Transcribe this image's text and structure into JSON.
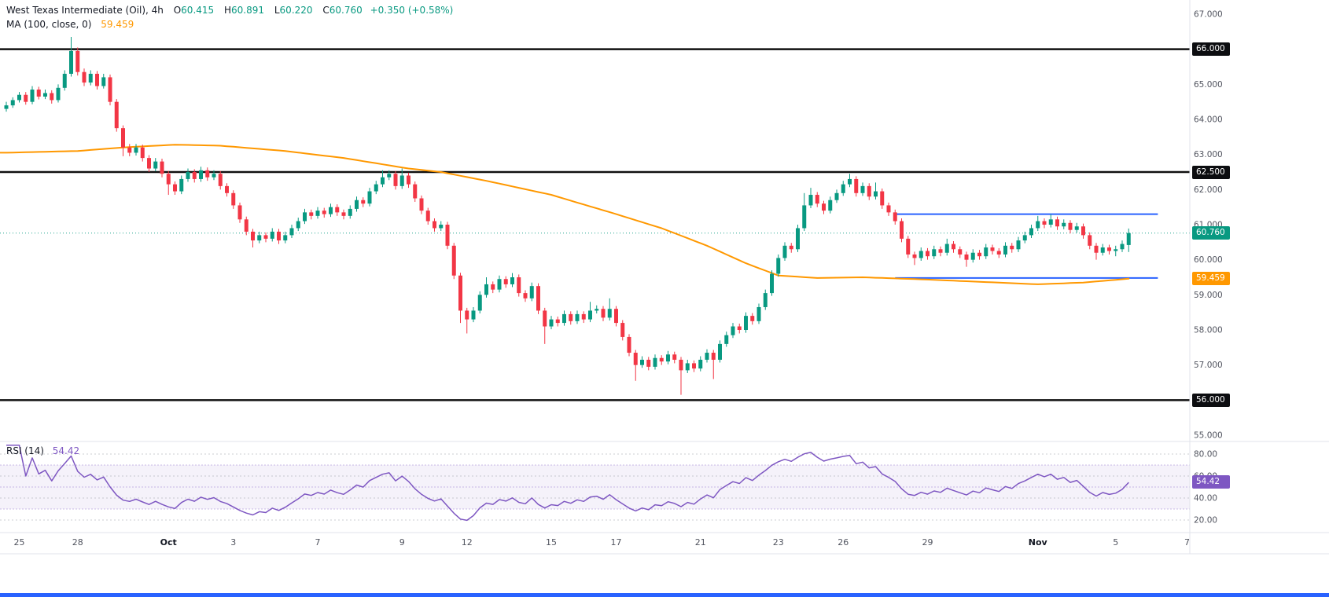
{
  "header": {
    "symbol_line": {
      "title": "West Texas Intermediate (Oil), 4h",
      "o_label": "O",
      "o": "60.415",
      "h_label": "H",
      "h": "60.891",
      "l_label": "L",
      "l": "60.220",
      "c_label": "C",
      "c": "60.760",
      "change": "+0.350 (+0.58%)"
    },
    "ma_line": {
      "label": "MA (100, close, 0)",
      "value": "59.459"
    }
  },
  "rsi_header": {
    "label": "RSI (14)",
    "value": "54.42"
  },
  "price_axis": {
    "ticks": [
      "67.000",
      "65.000",
      "64.000",
      "63.000",
      "62.000",
      "61.000",
      "60.000",
      "59.000",
      "58.000",
      "57.000",
      "55.000"
    ],
    "tick_prices": [
      67,
      65,
      64,
      63,
      62,
      61,
      60,
      59,
      58,
      57,
      55
    ],
    "badges": [
      {
        "label": "66.000",
        "price": 66.0,
        "type": "level"
      },
      {
        "label": "62.500",
        "price": 62.5,
        "type": "level"
      },
      {
        "label": "56.000",
        "price": 56.0,
        "type": "level"
      },
      {
        "label": "60.760",
        "price": 60.76,
        "type": "last"
      },
      {
        "label": "59.459",
        "price": 59.459,
        "type": "ma"
      }
    ]
  },
  "rsi_axis": {
    "ticks": [
      "80.00",
      "60.00",
      "40.00",
      "20.00"
    ],
    "tick_values": [
      80,
      60,
      40,
      20
    ],
    "badge": {
      "label": "54.42",
      "value": 54.42
    }
  },
  "time_axis": {
    "ticks": [
      {
        "label": "25",
        "i": 2
      },
      {
        "label": "28",
        "i": 11
      },
      {
        "label": "Oct",
        "i": 25,
        "strong": true
      },
      {
        "label": "3",
        "i": 35
      },
      {
        "label": "7",
        "i": 48
      },
      {
        "label": "9",
        "i": 61
      },
      {
        "label": "12",
        "i": 71
      },
      {
        "label": "15",
        "i": 84
      },
      {
        "label": "17",
        "i": 94
      },
      {
        "label": "21",
        "i": 107
      },
      {
        "label": "23",
        "i": 119
      },
      {
        "label": "26",
        "i": 129
      },
      {
        "label": "29",
        "i": 142
      },
      {
        "label": "Nov",
        "i": 159,
        "strong": true
      },
      {
        "label": "5",
        "i": 171
      },
      {
        "label": "7",
        "i": 182
      }
    ]
  },
  "colors": {
    "up": "#089981",
    "down": "#F23645",
    "ma": "#FF9800",
    "rsi": "#7E57C2",
    "level": "#101010",
    "range": "#2962FF",
    "last_line": "#089981",
    "axis_text": "#50535E",
    "strong_text": "#131722",
    "grid": "#E0E3EB"
  },
  "chart_data": {
    "type": "candlestick",
    "title": "West Texas Intermediate (Oil), 4h",
    "interval": "4h",
    "last": {
      "open": 60.415,
      "high": 60.891,
      "low": 60.22,
      "close": 60.76,
      "change": 0.35,
      "change_pct": 0.58
    },
    "price_axis_range": [
      55,
      67
    ],
    "levels": [
      66.0,
      62.5,
      56.0
    ],
    "last_price": 60.76,
    "blue_range_lines": {
      "prices": [
        61.3,
        59.48
      ],
      "i_start": 137,
      "i_end": 177.5
    },
    "ma": {
      "period": 100,
      "last": 59.459,
      "anchors": [
        [
          0,
          63.05
        ],
        [
          11,
          63.1
        ],
        [
          18,
          63.2
        ],
        [
          26,
          63.28
        ],
        [
          33,
          63.25
        ],
        [
          43,
          63.1
        ],
        [
          52,
          62.9
        ],
        [
          62,
          62.6
        ],
        [
          67,
          62.5
        ],
        [
          74,
          62.25
        ],
        [
          84,
          61.85
        ],
        [
          94,
          61.3
        ],
        [
          101,
          60.9
        ],
        [
          108,
          60.4
        ],
        [
          114,
          59.9
        ],
        [
          119,
          59.55
        ],
        [
          125,
          59.48
        ],
        [
          132,
          59.5
        ],
        [
          140,
          59.45
        ],
        [
          149,
          59.38
        ],
        [
          159,
          59.3
        ],
        [
          166,
          59.35
        ],
        [
          173,
          59.459
        ]
      ]
    },
    "rsi": {
      "period": 14,
      "last": 54.42,
      "upper": 70,
      "middle": 50,
      "lower": 30,
      "axis_range": [
        20,
        80
      ]
    },
    "candles": [
      [
        64.3,
        64.5,
        64.22,
        64.4
      ],
      [
        64.4,
        64.63,
        64.33,
        64.55
      ],
      [
        64.55,
        64.78,
        64.48,
        64.7
      ],
      [
        64.7,
        64.78,
        64.42,
        64.5
      ],
      [
        64.5,
        64.95,
        64.43,
        64.85
      ],
      [
        64.85,
        64.93,
        64.57,
        64.65
      ],
      [
        64.65,
        64.85,
        64.58,
        64.75
      ],
      [
        64.75,
        64.83,
        64.45,
        64.55
      ],
      [
        64.55,
        65.0,
        64.48,
        64.9
      ],
      [
        64.9,
        65.4,
        64.82,
        65.3
      ],
      [
        65.3,
        66.35,
        65.22,
        65.95
      ],
      [
        65.95,
        66.05,
        65.25,
        65.35
      ],
      [
        65.35,
        65.45,
        64.95,
        65.05
      ],
      [
        65.05,
        65.4,
        64.97,
        65.3
      ],
      [
        65.3,
        65.38,
        64.85,
        64.95
      ],
      [
        64.95,
        65.3,
        64.88,
        65.2
      ],
      [
        65.2,
        65.28,
        64.4,
        64.5
      ],
      [
        64.5,
        64.58,
        63.65,
        63.75
      ],
      [
        63.75,
        63.83,
        62.95,
        63.2
      ],
      [
        63.2,
        63.3,
        62.95,
        63.05
      ],
      [
        63.05,
        63.3,
        62.97,
        63.2
      ],
      [
        63.2,
        63.28,
        62.8,
        62.9
      ],
      [
        62.9,
        62.98,
        62.5,
        62.6
      ],
      [
        62.6,
        62.9,
        62.52,
        62.8
      ],
      [
        62.8,
        62.88,
        62.35,
        62.45
      ],
      [
        62.45,
        62.53,
        61.85,
        62.15
      ],
      [
        62.15,
        62.23,
        61.85,
        61.95
      ],
      [
        61.95,
        62.4,
        61.87,
        62.3
      ],
      [
        62.3,
        62.6,
        62.22,
        62.5
      ],
      [
        62.5,
        62.58,
        62.2,
        62.3
      ],
      [
        62.3,
        62.65,
        62.22,
        62.55
      ],
      [
        62.55,
        62.63,
        62.25,
        62.35
      ],
      [
        62.35,
        62.55,
        62.27,
        62.45
      ],
      [
        62.45,
        62.53,
        62.0,
        62.1
      ],
      [
        62.1,
        62.18,
        61.8,
        61.9
      ],
      [
        61.9,
        61.98,
        61.45,
        61.55
      ],
      [
        61.55,
        61.63,
        61.05,
        61.15
      ],
      [
        61.15,
        61.23,
        60.7,
        60.8
      ],
      [
        60.8,
        60.88,
        60.35,
        60.55
      ],
      [
        60.55,
        60.8,
        60.47,
        60.7
      ],
      [
        60.7,
        60.78,
        60.5,
        60.6
      ],
      [
        60.6,
        60.9,
        60.52,
        60.8
      ],
      [
        60.8,
        60.88,
        60.45,
        60.55
      ],
      [
        60.55,
        60.8,
        60.47,
        60.7
      ],
      [
        60.7,
        61.0,
        60.62,
        60.9
      ],
      [
        60.9,
        61.2,
        60.82,
        61.1
      ],
      [
        61.1,
        61.45,
        61.02,
        61.35
      ],
      [
        61.35,
        61.43,
        61.15,
        61.25
      ],
      [
        61.25,
        61.5,
        61.17,
        61.4
      ],
      [
        61.4,
        61.48,
        61.2,
        61.3
      ],
      [
        61.3,
        61.6,
        61.22,
        61.5
      ],
      [
        61.5,
        61.58,
        61.25,
        61.35
      ],
      [
        61.35,
        61.43,
        61.15,
        61.25
      ],
      [
        61.25,
        61.55,
        61.17,
        61.45
      ],
      [
        61.45,
        61.8,
        61.37,
        61.7
      ],
      [
        61.7,
        61.78,
        61.5,
        61.6
      ],
      [
        61.6,
        62.05,
        61.52,
        61.95
      ],
      [
        61.95,
        62.25,
        61.87,
        62.15
      ],
      [
        62.15,
        62.55,
        62.07,
        62.35
      ],
      [
        62.35,
        62.55,
        62.27,
        62.45
      ],
      [
        62.45,
        62.53,
        62.0,
        62.1
      ],
      [
        62.1,
        62.6,
        62.02,
        62.4
      ],
      [
        62.4,
        62.48,
        62.05,
        62.15
      ],
      [
        62.15,
        62.23,
        61.65,
        61.75
      ],
      [
        61.75,
        61.83,
        61.3,
        61.4
      ],
      [
        61.4,
        61.48,
        61.0,
        61.1
      ],
      [
        61.1,
        61.18,
        60.8,
        60.9
      ],
      [
        60.9,
        61.1,
        60.82,
        61.0
      ],
      [
        61.0,
        61.08,
        60.3,
        60.4
      ],
      [
        60.4,
        60.48,
        59.45,
        59.55
      ],
      [
        59.55,
        59.63,
        58.2,
        58.55
      ],
      [
        58.55,
        58.63,
        57.9,
        58.3
      ],
      [
        58.3,
        58.65,
        58.22,
        58.55
      ],
      [
        58.55,
        59.1,
        58.47,
        59.0
      ],
      [
        59.0,
        59.5,
        58.92,
        59.3
      ],
      [
        59.3,
        59.38,
        59.05,
        59.15
      ],
      [
        59.15,
        59.55,
        59.07,
        59.45
      ],
      [
        59.45,
        59.53,
        59.2,
        59.3
      ],
      [
        59.3,
        59.62,
        59.22,
        59.5
      ],
      [
        59.5,
        59.58,
        58.95,
        59.05
      ],
      [
        59.05,
        59.13,
        58.8,
        58.9
      ],
      [
        58.9,
        59.35,
        58.82,
        59.25
      ],
      [
        59.25,
        59.33,
        58.45,
        58.55
      ],
      [
        58.55,
        58.63,
        57.6,
        58.1
      ],
      [
        58.1,
        58.4,
        58.02,
        58.3
      ],
      [
        58.3,
        58.38,
        58.1,
        58.2
      ],
      [
        58.2,
        58.55,
        58.12,
        58.45
      ],
      [
        58.45,
        58.53,
        58.15,
        58.25
      ],
      [
        58.25,
        58.55,
        58.17,
        58.45
      ],
      [
        58.45,
        58.53,
        58.2,
        58.3
      ],
      [
        58.3,
        58.8,
        58.22,
        58.55
      ],
      [
        58.55,
        58.7,
        58.47,
        58.6
      ],
      [
        58.6,
        58.68,
        58.25,
        58.35
      ],
      [
        58.35,
        58.9,
        58.27,
        58.6
      ],
      [
        58.6,
        58.68,
        58.1,
        58.2
      ],
      [
        58.2,
        58.28,
        57.7,
        57.8
      ],
      [
        57.8,
        57.88,
        57.25,
        57.35
      ],
      [
        57.35,
        57.43,
        56.55,
        57.0
      ],
      [
        57.0,
        57.25,
        56.92,
        57.15
      ],
      [
        57.15,
        57.23,
        56.85,
        56.95
      ],
      [
        56.95,
        57.3,
        56.87,
        57.2
      ],
      [
        57.2,
        57.28,
        57.0,
        57.1
      ],
      [
        57.1,
        57.4,
        57.02,
        57.3
      ],
      [
        57.3,
        57.38,
        57.05,
        57.15
      ],
      [
        57.15,
        57.23,
        56.15,
        56.85
      ],
      [
        56.85,
        57.15,
        56.77,
        57.05
      ],
      [
        57.05,
        57.13,
        56.8,
        56.9
      ],
      [
        56.9,
        57.25,
        56.82,
        57.15
      ],
      [
        57.15,
        57.45,
        57.07,
        57.35
      ],
      [
        57.35,
        57.43,
        56.6,
        57.15
      ],
      [
        57.15,
        57.7,
        57.07,
        57.6
      ],
      [
        57.6,
        57.95,
        57.52,
        57.85
      ],
      [
        57.85,
        58.2,
        57.77,
        58.1
      ],
      [
        58.1,
        58.18,
        57.9,
        58.0
      ],
      [
        58.0,
        58.5,
        57.92,
        58.4
      ],
      [
        58.4,
        58.48,
        58.15,
        58.25
      ],
      [
        58.25,
        58.75,
        58.17,
        58.65
      ],
      [
        58.65,
        59.15,
        58.57,
        59.05
      ],
      [
        59.05,
        59.7,
        58.97,
        59.6
      ],
      [
        59.6,
        60.15,
        59.52,
        60.05
      ],
      [
        60.05,
        60.5,
        59.97,
        60.4
      ],
      [
        60.4,
        60.48,
        60.2,
        60.3
      ],
      [
        60.3,
        61.0,
        60.22,
        60.9
      ],
      [
        60.9,
        61.9,
        60.82,
        61.55
      ],
      [
        61.55,
        62.05,
        61.47,
        61.85
      ],
      [
        61.85,
        61.93,
        61.5,
        61.6
      ],
      [
        61.6,
        61.68,
        61.3,
        61.4
      ],
      [
        61.4,
        61.8,
        61.32,
        61.7
      ],
      [
        61.7,
        62.0,
        61.62,
        61.9
      ],
      [
        61.9,
        62.25,
        61.82,
        62.15
      ],
      [
        62.15,
        62.45,
        62.07,
        62.3
      ],
      [
        62.3,
        62.38,
        61.8,
        61.9
      ],
      [
        61.9,
        62.2,
        61.82,
        62.1
      ],
      [
        62.1,
        62.18,
        61.7,
        61.8
      ],
      [
        61.8,
        62.2,
        61.72,
        61.95
      ],
      [
        61.95,
        62.03,
        61.45,
        61.55
      ],
      [
        61.55,
        61.63,
        61.25,
        61.35
      ],
      [
        61.35,
        61.43,
        61.0,
        61.1
      ],
      [
        61.1,
        61.18,
        60.5,
        60.6
      ],
      [
        60.6,
        60.68,
        60.05,
        60.15
      ],
      [
        60.15,
        60.23,
        59.85,
        60.05
      ],
      [
        60.05,
        60.35,
        59.97,
        60.25
      ],
      [
        60.25,
        60.33,
        60.0,
        60.1
      ],
      [
        60.1,
        60.4,
        60.02,
        60.3
      ],
      [
        60.3,
        60.38,
        60.1,
        60.2
      ],
      [
        60.2,
        60.6,
        60.12,
        60.45
      ],
      [
        60.45,
        60.53,
        60.2,
        60.3
      ],
      [
        60.3,
        60.38,
        60.05,
        60.15
      ],
      [
        60.15,
        60.23,
        59.8,
        60.0
      ],
      [
        60.0,
        60.3,
        59.92,
        60.2
      ],
      [
        60.2,
        60.28,
        60.0,
        60.1
      ],
      [
        60.1,
        60.45,
        60.02,
        60.35
      ],
      [
        60.35,
        60.43,
        60.15,
        60.25
      ],
      [
        60.25,
        60.33,
        60.05,
        60.15
      ],
      [
        60.15,
        60.5,
        60.07,
        60.4
      ],
      [
        60.4,
        60.48,
        60.2,
        60.3
      ],
      [
        60.3,
        60.65,
        60.22,
        60.55
      ],
      [
        60.55,
        60.8,
        60.47,
        60.7
      ],
      [
        60.7,
        61.0,
        60.62,
        60.9
      ],
      [
        60.9,
        61.25,
        60.82,
        61.1
      ],
      [
        61.1,
        61.18,
        60.9,
        61.0
      ],
      [
        61.0,
        61.3,
        60.92,
        61.15
      ],
      [
        61.15,
        61.23,
        60.85,
        60.95
      ],
      [
        60.95,
        61.15,
        60.87,
        61.05
      ],
      [
        61.05,
        61.13,
        60.75,
        60.85
      ],
      [
        60.85,
        61.05,
        60.77,
        60.95
      ],
      [
        60.95,
        61.03,
        60.6,
        60.7
      ],
      [
        60.7,
        60.78,
        60.3,
        60.4
      ],
      [
        60.4,
        60.48,
        60.0,
        60.2
      ],
      [
        60.2,
        60.45,
        60.12,
        60.35
      ],
      [
        60.35,
        60.43,
        60.15,
        60.25
      ],
      [
        60.25,
        60.4,
        60.1,
        60.3
      ],
      [
        60.3,
        60.55,
        60.22,
        60.45
      ],
      [
        60.42,
        60.89,
        60.22,
        60.76
      ]
    ]
  }
}
